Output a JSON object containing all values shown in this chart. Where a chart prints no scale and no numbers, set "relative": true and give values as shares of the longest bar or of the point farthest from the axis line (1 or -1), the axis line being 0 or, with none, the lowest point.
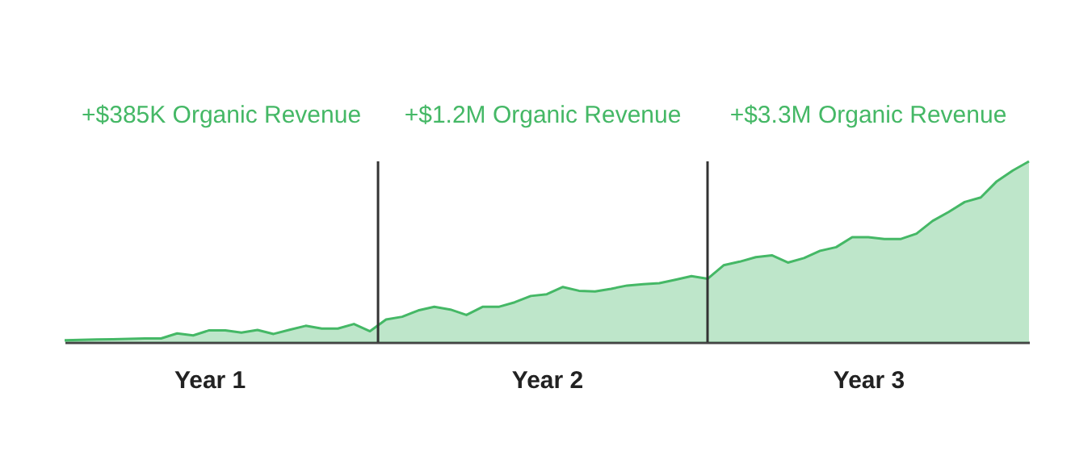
{
  "chart_data": {
    "type": "area",
    "relative": true,
    "tick_labels": "x",
    "categories": [
      null,
      null,
      null,
      null,
      null,
      null,
      null,
      null,
      null,
      "Year 1",
      null,
      null,
      null,
      null,
      null,
      null,
      null,
      null,
      null,
      null,
      null,
      null,
      null,
      null,
      null,
      null,
      null,
      null,
      null,
      null,
      "Year 2",
      null,
      null,
      null,
      null,
      null,
      null,
      null,
      null,
      null,
      null,
      null,
      null,
      null,
      null,
      null,
      null,
      null,
      null,
      null,
      "Year 3",
      null,
      null,
      null,
      null,
      null,
      null,
      null,
      null,
      null,
      null
    ],
    "series": [
      {
        "color": "#45b866",
        "values": [
          0.01,
          0.012,
          0.014,
          0.016,
          0.018,
          0.02,
          0.02,
          0.048,
          0.037,
          0.065,
          0.065,
          0.052,
          0.067,
          0.045,
          0.068,
          0.09,
          0.075,
          0.075,
          0.1,
          0.06,
          0.125,
          0.14,
          0.175,
          0.195,
          0.18,
          0.15,
          0.195,
          0.195,
          0.22,
          0.255,
          0.265,
          0.305,
          0.284,
          0.28,
          0.295,
          0.313,
          0.32,
          0.326,
          0.345,
          0.365,
          0.35,
          0.425,
          0.445,
          0.47,
          0.48,
          0.44,
          0.465,
          0.505,
          0.525,
          0.58,
          0.58,
          0.57,
          0.57,
          0.6,
          0.67,
          0.72,
          0.775,
          0.8,
          0.89,
          0.95,
          1.0
        ]
      }
    ],
    "annotations": [
      "+$385K Organic Revenue",
      "+$1.2M Organic Revenue",
      "+$3.3M Organic Revenue"
    ]
  }
}
